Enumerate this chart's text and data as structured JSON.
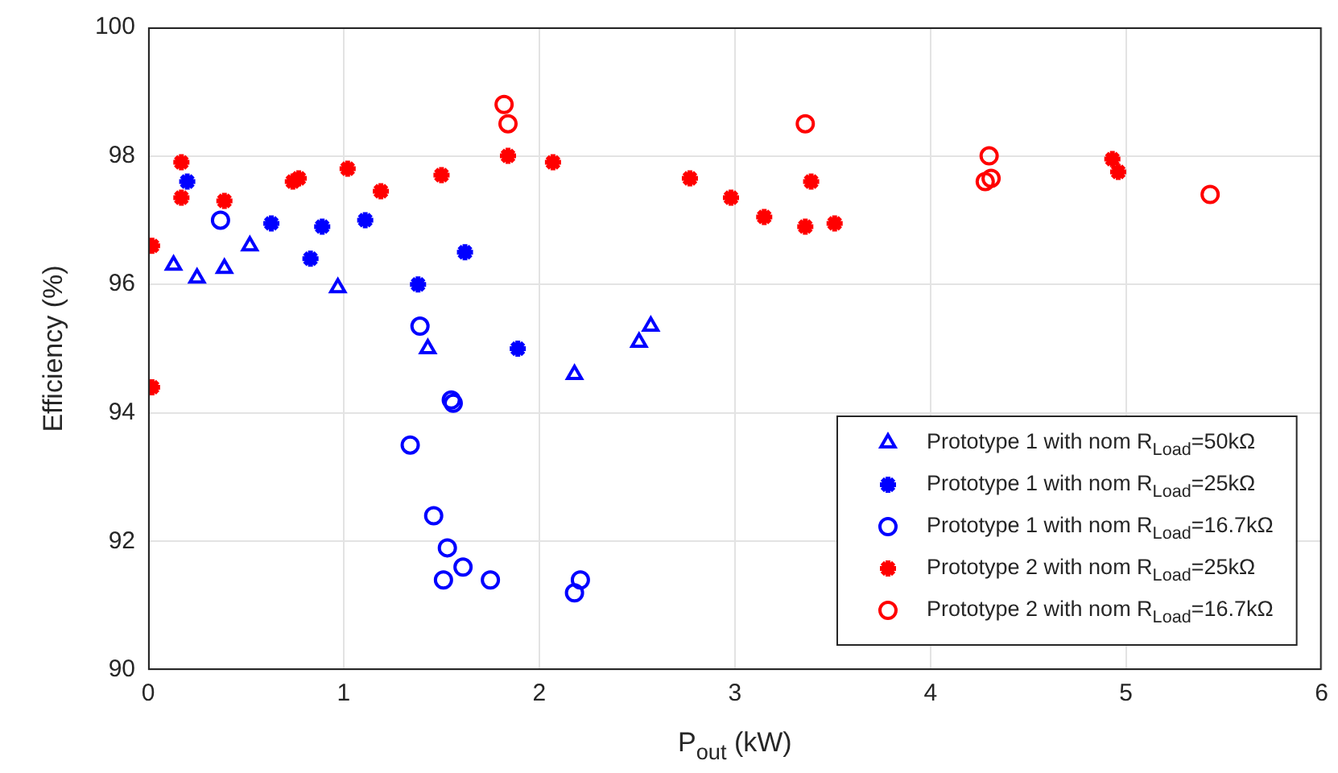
{
  "chart_data": {
    "type": "scatter",
    "xlabel": "P$_{out}$ (kW)",
    "ylabel": "Efficiency (%)",
    "xlim": [
      0,
      6
    ],
    "xticks": [
      0,
      1,
      2,
      3,
      4,
      5,
      6
    ],
    "ylim": [
      90,
      100
    ],
    "yticks": [
      90,
      92,
      94,
      96,
      98,
      100
    ],
    "grid": true,
    "legend": "bottom right",
    "series": [
      {
        "name": "Prototype 1 with nom R$_{Load}$=50kΩ",
        "color": "#0000ff",
        "marker": "triangle",
        "x": [
          0.13,
          0.25,
          0.39,
          0.52,
          0.97,
          1.43,
          2.18,
          2.51,
          2.57
        ],
        "values": [
          96.3,
          96.1,
          96.25,
          96.6,
          95.95,
          95.0,
          94.6,
          95.1,
          95.35
        ]
      },
      {
        "name": "Prototype 1 with nom R$_{Load}$=25kΩ",
        "color": "#0000ff",
        "marker": "cross",
        "x": [
          0.2,
          0.63,
          0.83,
          0.89,
          1.11,
          1.38,
          1.62,
          1.89
        ],
        "values": [
          97.6,
          96.95,
          96.4,
          96.9,
          97.0,
          96.0,
          96.5,
          95.0
        ]
      },
      {
        "name": "Prototype 1 with nom R$_{Load}$=16.7kΩ",
        "color": "#0000ff",
        "marker": "circle",
        "x": [
          0.37,
          1.39,
          1.55,
          1.56,
          1.34,
          1.46,
          1.53,
          1.51,
          1.61,
          1.75,
          2.21,
          2.18
        ],
        "values": [
          97.0,
          95.35,
          94.2,
          94.15,
          93.5,
          92.4,
          91.9,
          91.4,
          91.6,
          91.4,
          91.4,
          91.2
        ]
      },
      {
        "name": "Prototype 2 with nom R$_{Load}$=25kΩ",
        "color": "#ff0000",
        "marker": "cross",
        "x": [
          0.02,
          0.02,
          0.17,
          0.17,
          0.39,
          0.74,
          0.77,
          1.02,
          1.19,
          1.5,
          1.84,
          2.07,
          2.77,
          2.98,
          3.15,
          3.36,
          3.39,
          3.51,
          4.93,
          4.95,
          4.96
        ],
        "values": [
          96.6,
          94.4,
          97.9,
          97.35,
          97.3,
          97.6,
          97.65,
          97.8,
          97.45,
          97.7,
          98.0,
          97.9,
          97.65,
          97.35,
          97.05,
          96.9,
          97.6,
          96.95,
          97.95,
          null,
          97.75
        ]
      },
      {
        "name": "Prototype 2 with nom R$_{Load}$=16.7kΩ",
        "color": "#ff0000",
        "marker": "circle",
        "x": [
          1.82,
          1.84,
          3.36,
          4.3,
          4.28,
          4.31,
          5.43
        ],
        "values": [
          98.8,
          98.5,
          98.5,
          98.0,
          97.6,
          97.65,
          97.4
        ]
      }
    ]
  }
}
